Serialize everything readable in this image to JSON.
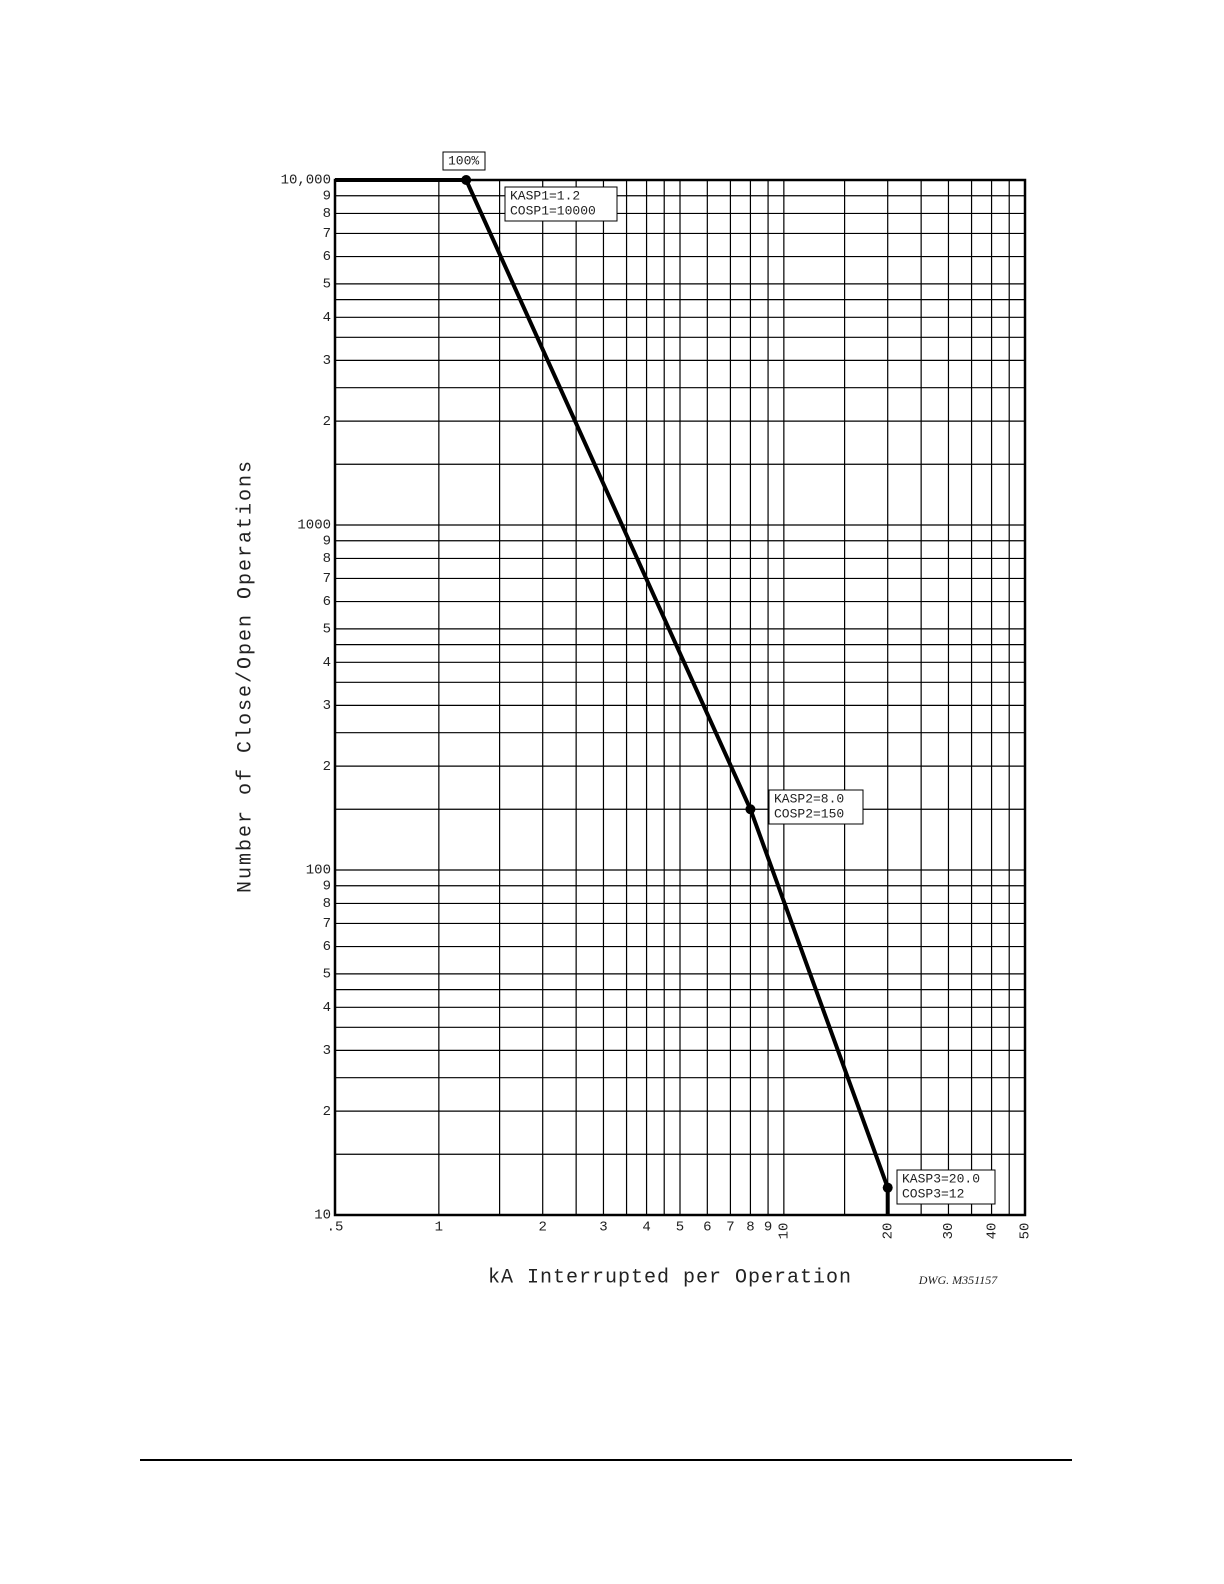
{
  "chart_data": {
    "type": "line",
    "xlabel": "kA Interrupted per Operation",
    "ylabel": "Number of Close/Open Operations",
    "note": "DWG. M351157",
    "xscale": "log",
    "yscale": "log",
    "grid": true,
    "x": [
      0.5,
      1.2,
      8.0,
      20.0,
      20.0
    ],
    "series": [
      {
        "color": "#000000",
        "values": [
          10000,
          10000,
          150,
          12,
          10
        ]
      }
    ],
    "markers": [
      1,
      2,
      3
    ],
    "xlim": [
      0.5,
      50
    ],
    "ylim": [
      10,
      10000
    ],
    "xticks": [
      {
        "value": 0.5,
        "label": ".5"
      },
      1,
      2,
      3,
      4,
      5,
      6,
      7,
      8,
      9,
      10,
      20,
      30,
      40,
      50
    ],
    "yticks": [
      {
        "value": 10000,
        "label": "10,000"
      },
      {
        "value": 9000,
        "label": "9"
      },
      {
        "value": 8000,
        "label": "8"
      },
      {
        "value": 7000,
        "label": "7"
      },
      {
        "value": 6000,
        "label": "6"
      },
      {
        "value": 5000,
        "label": "5"
      },
      {
        "value": 4000,
        "label": "4"
      },
      {
        "value": 3000,
        "label": "3"
      },
      {
        "value": 2000,
        "label": "2"
      },
      1000,
      {
        "value": 900,
        "label": "9"
      },
      {
        "value": 800,
        "label": "8"
      },
      {
        "value": 700,
        "label": "7"
      },
      {
        "value": 600,
        "label": "6"
      },
      {
        "value": 500,
        "label": "5"
      },
      {
        "value": 400,
        "label": "4"
      },
      {
        "value": 300,
        "label": "3"
      },
      {
        "value": 200,
        "label": "2"
      },
      100,
      {
        "value": 90,
        "label": "9"
      },
      {
        "value": 80,
        "label": "8"
      },
      {
        "value": 70,
        "label": "7"
      },
      {
        "value": 60,
        "label": "6"
      },
      {
        "value": 50,
        "label": "5"
      },
      {
        "value": 40,
        "label": "4"
      },
      {
        "value": 30,
        "label": "3"
      },
      {
        "value": 20,
        "label": "2"
      },
      10
    ],
    "xgrid_minor": [
      1.5,
      2.5,
      3.5,
      4.5,
      15,
      25,
      35,
      45
    ],
    "ygrid_minor": [
      15,
      25,
      35,
      45,
      150,
      250,
      350,
      450,
      1500,
      2500,
      3500,
      4500
    ],
    "annotations": [
      {
        "lines": [
          "100%"
        ]
      },
      {
        "lines": [
          "KASP1=1.2",
          "COSP1=10000"
        ]
      },
      {
        "lines": [
          "KASP2=8.0",
          "COSP2=150"
        ]
      },
      {
        "lines": [
          "KASP3=20.0",
          "COSP3=12"
        ]
      }
    ]
  }
}
